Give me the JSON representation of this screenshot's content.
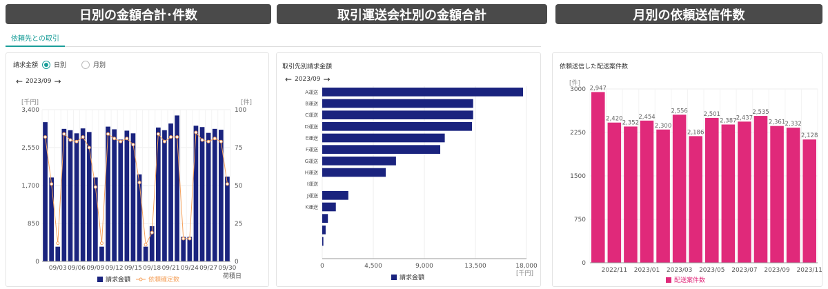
{
  "banners": [
    "日別の金額合計･件数",
    "取引運送会社別の金額合計",
    "月別の依頼送信件数"
  ],
  "tab": {
    "label": "依頼先との取引"
  },
  "colors": {
    "navy": "#1a237e",
    "orange": "#f5a25d",
    "pink": "#e0297a",
    "teal": "#1a9e99"
  },
  "daily": {
    "toggle_label": "請求金額",
    "options": [
      "日別",
      "月別"
    ],
    "selected": "日別",
    "month": "2023/09",
    "unit_left": "[千円]",
    "unit_right": "[件]",
    "xlabel": "荷積日",
    "legend": [
      "請求金額",
      "依頼確定数"
    ]
  },
  "carrier": {
    "title": "取引先別請求金額",
    "month": "2023/09",
    "unit": "[千円]",
    "legend": "請求金額"
  },
  "monthly": {
    "title": "依頼送信した配送案件数",
    "unit": "[件]",
    "legend": "配送案件数"
  },
  "chart_data": [
    {
      "type": "bar",
      "name": "daily",
      "x": [
        "09/01",
        "09/02",
        "09/03",
        "09/04",
        "09/05",
        "09/06",
        "09/07",
        "09/08",
        "09/09",
        "09/10",
        "09/11",
        "09/12",
        "09/13",
        "09/14",
        "09/15",
        "09/16",
        "09/17",
        "09/18",
        "09/19",
        "09/20",
        "09/21",
        "09/22",
        "09/23",
        "09/24",
        "09/25",
        "09/26",
        "09/27",
        "09/28",
        "09/29",
        "09/30"
      ],
      "xticks": [
        "09/03",
        "09/06",
        "09/09",
        "09/12",
        "09/15",
        "09/18",
        "09/21",
        "09/24",
        "09/27",
        "09/30"
      ],
      "bars": [
        3120,
        1880,
        330,
        2970,
        2940,
        2870,
        2980,
        2900,
        1880,
        330,
        3020,
        2960,
        2730,
        2930,
        2870,
        1950,
        330,
        790,
        3000,
        2940,
        3090,
        3270,
        550,
        550,
        3040,
        3010,
        2880,
        2970,
        2950,
        1900
      ],
      "line": [
        82,
        51,
        12,
        84,
        80,
        79,
        82,
        75,
        49,
        12,
        84,
        81,
        79,
        81,
        77,
        52,
        11,
        19,
        84,
        79,
        82,
        82,
        15,
        15,
        85,
        80,
        79,
        81,
        79,
        51
      ],
      "y_ticks_left": [
        "0",
        "850",
        "1,700",
        "2,550",
        "3,400"
      ],
      "y_ticks_right": [
        "0",
        "25",
        "50",
        "75",
        "100"
      ],
      "ylim": [
        0,
        3400
      ],
      "ylim_right": [
        0,
        100
      ]
    },
    {
      "type": "bar",
      "name": "carrier",
      "orientation": "horizontal",
      "categories": [
        "A運送",
        "B運送",
        "C運送",
        "D運送",
        "E運送",
        "F運送",
        "G運送",
        "H運送",
        "I運送",
        "J運送",
        "K運送",
        "",
        "",
        "",
        ""
      ],
      "values": [
        17700,
        13300,
        13300,
        13200,
        10800,
        10400,
        6500,
        5600,
        0,
        2300,
        1200,
        500,
        300,
        100,
        0
      ],
      "x_ticks": [
        "0",
        "4,500",
        "9,000",
        "13,500",
        "18,000"
      ],
      "xlim": [
        0,
        18000
      ]
    },
    {
      "type": "bar",
      "name": "monthly",
      "categories": [
        "2022/10",
        "2022/11",
        "2022/12",
        "2023/01",
        "2023/02",
        "2023/03",
        "2023/04",
        "2023/05",
        "2023/06",
        "2023/07",
        "2023/08",
        "2023/09",
        "2023/10",
        "2023/11"
      ],
      "values": [
        2947,
        2420,
        2352,
        2454,
        2300,
        2556,
        2186,
        2501,
        2387,
        2437,
        2535,
        2361,
        2332,
        2128
      ],
      "labels": [
        "2,947",
        "2,420",
        "2,352",
        "2,454",
        "2,300",
        "2,556",
        "2,186",
        "2,501",
        "2,387",
        "2,437",
        "2,535",
        "2,361",
        "2,332",
        "2,128"
      ],
      "xticks": [
        "2022/11",
        "2023/01",
        "2023/03",
        "2023/05",
        "2023/07",
        "2023/09",
        "2023/11"
      ],
      "y_ticks": [
        "0",
        "750",
        "1500",
        "2250",
        "3000"
      ],
      "ylim": [
        0,
        3000
      ]
    }
  ]
}
